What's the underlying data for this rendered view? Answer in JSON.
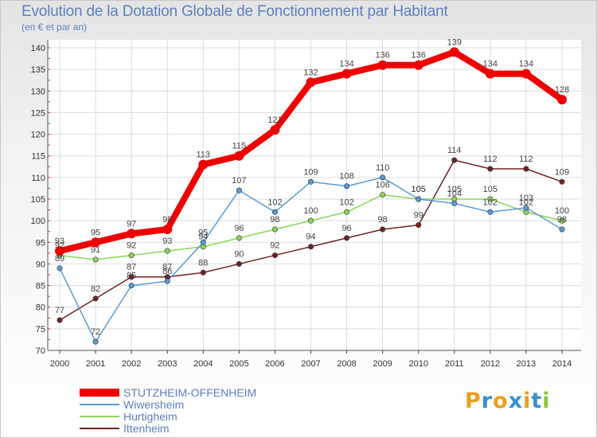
{
  "title": "Evolution de la Dotation Globale de Fonctionnement par Habitant",
  "subtitle": "(en € et par an)",
  "logo": {
    "text": "Proxiti",
    "colors": [
      "#e8a020",
      "#3a8fd0",
      "#e8a020",
      "#3a8fd0",
      "#e8a020",
      "#3a8fd0",
      "#8cc63e"
    ]
  },
  "chart_data": {
    "type": "line",
    "title": "Evolution de la Dotation Globale de Fonctionnement par Habitant",
    "ylabel": "(en € et par an)",
    "xlabel": "",
    "ylim": [
      70,
      140
    ],
    "yticks": [
      70,
      75,
      80,
      85,
      90,
      95,
      100,
      105,
      110,
      115,
      120,
      125,
      130,
      135,
      140
    ],
    "grid": true,
    "legend_position": "bottom-left",
    "x": [
      "2000",
      "2001",
      "2002",
      "2003",
      "2004",
      "2005",
      "2006",
      "2007",
      "2008",
      "2009",
      "2010",
      "2011",
      "2012",
      "2013",
      "2014"
    ],
    "series": [
      {
        "name": "Ittenheim",
        "color": "#6e2323",
        "values": [
          77,
          82,
          87,
          87,
          88,
          90,
          92,
          94,
          96,
          98,
          99,
          114,
          112,
          112,
          109
        ]
      },
      {
        "name": "Hurtigheim",
        "color": "#8cd45a",
        "values": [
          92,
          91,
          92,
          93,
          94,
          96,
          98,
          100,
          102,
          106,
          105,
          105,
          105,
          102,
          100
        ]
      },
      {
        "name": "Wiwersheim",
        "color": "#5a9ad2",
        "values": [
          89,
          72,
          85,
          86,
          95,
          107,
          102,
          109,
          108,
          110,
          105,
          104,
          102,
          103,
          98
        ]
      },
      {
        "name": "STUTZHEIM-OFFENHEIM",
        "color": "#ee0000",
        "values": [
          93,
          95,
          97,
          98,
          113,
          115,
          121,
          132,
          134,
          136,
          136,
          139,
          134,
          134,
          128
        ]
      }
    ],
    "legend": [
      "STUTZHEIM-OFFENHEIM",
      "Wiwersheim",
      "Hurtigheim",
      "Ittenheim"
    ]
  }
}
